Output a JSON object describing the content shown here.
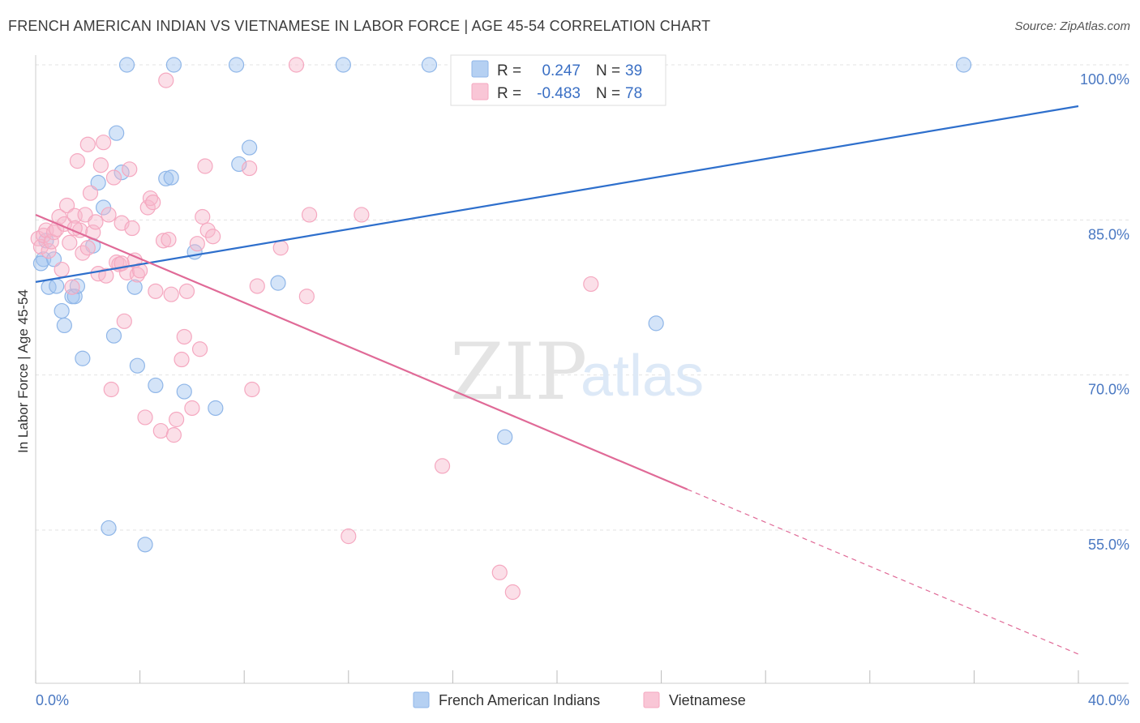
{
  "title": "FRENCH AMERICAN INDIAN VS VIETNAMESE IN LABOR FORCE | AGE 45-54 CORRELATION CHART",
  "source": "Source: ZipAtlas.com",
  "watermark": {
    "zip": "ZIP",
    "atlas": "atlas"
  },
  "chart_data": {
    "type": "scatter",
    "xlabel": "",
    "ylabel": "In Labor Force | Age 45-54",
    "xlim": [
      0,
      40
    ],
    "ylim": [
      40,
      102
    ],
    "x_tick_labels": [
      {
        "value": 0,
        "label": "0.0%"
      },
      {
        "value": 40,
        "label": "40.0%"
      }
    ],
    "y_tick_labels": [
      {
        "value": 100,
        "label": "100.0%"
      },
      {
        "value": 85,
        "label": "85.0%"
      },
      {
        "value": 70,
        "label": "70.0%"
      },
      {
        "value": 55,
        "label": "55.0%"
      }
    ],
    "x_minor_ticks": [
      4,
      8,
      12,
      16,
      20,
      24,
      28,
      32,
      36
    ],
    "grid": true,
    "legend": {
      "position": "top-center",
      "entries": [
        {
          "r_label": "R =",
          "r_value": "0.247",
          "n_label": "N =",
          "n_value": "39"
        },
        {
          "r_label": "R =",
          "r_value": "-0.483",
          "n_label": "N =",
          "n_value": "78"
        }
      ]
    },
    "series": [
      {
        "name": "French American Indians",
        "color": "#8fb6e8",
        "line_color": "#2e6fcc",
        "trend": {
          "x0": 0,
          "y0": 79.0,
          "x1": 40,
          "y1": 96.0,
          "dashed_from_x": null
        },
        "points": [
          [
            0.3,
            81.2
          ],
          [
            0.4,
            83.0
          ],
          [
            0.5,
            78.5
          ],
          [
            0.7,
            81.2
          ],
          [
            0.8,
            78.6
          ],
          [
            1.0,
            76.2
          ],
          [
            1.1,
            74.8
          ],
          [
            1.4,
            77.6
          ],
          [
            1.5,
            77.6
          ],
          [
            1.6,
            78.6
          ],
          [
            1.8,
            71.6
          ],
          [
            2.2,
            82.5
          ],
          [
            2.4,
            88.6
          ],
          [
            2.6,
            86.2
          ],
          [
            2.8,
            55.2
          ],
          [
            3.0,
            73.8
          ],
          [
            3.1,
            93.4
          ],
          [
            3.3,
            89.6
          ],
          [
            3.5,
            100.0
          ],
          [
            3.8,
            78.5
          ],
          [
            3.9,
            70.9
          ],
          [
            4.2,
            53.6
          ],
          [
            4.6,
            69.0
          ],
          [
            5.0,
            89.0
          ],
          [
            5.2,
            89.1
          ],
          [
            5.3,
            100.0
          ],
          [
            5.7,
            68.4
          ],
          [
            6.1,
            81.9
          ],
          [
            6.9,
            66.8
          ],
          [
            7.7,
            100.0
          ],
          [
            7.8,
            90.4
          ],
          [
            8.2,
            92.0
          ],
          [
            9.3,
            78.9
          ],
          [
            11.8,
            100.0
          ],
          [
            15.1,
            100.0
          ],
          [
            18.0,
            64.0
          ],
          [
            23.8,
            75.0
          ],
          [
            35.6,
            100.0
          ],
          [
            0.2,
            80.8
          ]
        ]
      },
      {
        "name": "Vietnamese",
        "color": "#f5a8c0",
        "line_color": "#e06a97",
        "trend": {
          "x0": 0,
          "y0": 85.5,
          "x1": 40,
          "y1": 43.0,
          "dashed_from_x": 25.0
        },
        "points": [
          [
            0.1,
            83.2
          ],
          [
            0.2,
            82.4
          ],
          [
            0.3,
            83.5
          ],
          [
            0.4,
            84.0
          ],
          [
            0.5,
            82.0
          ],
          [
            0.6,
            82.9
          ],
          [
            0.7,
            83.8
          ],
          [
            0.8,
            84.1
          ],
          [
            0.9,
            85.3
          ],
          [
            1.0,
            80.2
          ],
          [
            1.1,
            84.6
          ],
          [
            1.2,
            86.4
          ],
          [
            1.3,
            82.8
          ],
          [
            1.4,
            78.5
          ],
          [
            1.5,
            85.4
          ],
          [
            1.6,
            90.7
          ],
          [
            1.7,
            84.0
          ],
          [
            1.8,
            81.8
          ],
          [
            1.9,
            85.5
          ],
          [
            2.0,
            82.3
          ],
          [
            2.1,
            87.6
          ],
          [
            2.2,
            83.8
          ],
          [
            2.3,
            84.8
          ],
          [
            2.4,
            79.8
          ],
          [
            2.5,
            90.3
          ],
          [
            2.6,
            92.5
          ],
          [
            2.7,
            79.6
          ],
          [
            2.8,
            85.5
          ],
          [
            2.9,
            68.6
          ],
          [
            3.0,
            89.1
          ],
          [
            3.1,
            80.9
          ],
          [
            3.2,
            80.7
          ],
          [
            3.3,
            84.7
          ],
          [
            3.4,
            75.2
          ],
          [
            3.5,
            79.9
          ],
          [
            3.6,
            89.9
          ],
          [
            3.7,
            84.2
          ],
          [
            3.8,
            81.1
          ],
          [
            3.9,
            79.7
          ],
          [
            4.0,
            80.1
          ],
          [
            4.2,
            65.9
          ],
          [
            4.3,
            86.2
          ],
          [
            4.4,
            87.1
          ],
          [
            4.5,
            86.7
          ],
          [
            4.6,
            78.1
          ],
          [
            4.8,
            64.6
          ],
          [
            4.9,
            83.0
          ],
          [
            5.0,
            98.5
          ],
          [
            5.2,
            77.8
          ],
          [
            5.3,
            64.2
          ],
          [
            5.4,
            65.7
          ],
          [
            5.6,
            71.5
          ],
          [
            5.7,
            73.7
          ],
          [
            5.8,
            78.1
          ],
          [
            6.0,
            66.8
          ],
          [
            6.2,
            82.7
          ],
          [
            6.3,
            72.5
          ],
          [
            6.4,
            85.3
          ],
          [
            6.5,
            90.2
          ],
          [
            6.6,
            84.0
          ],
          [
            6.8,
            83.4
          ],
          [
            2.0,
            92.3
          ],
          [
            8.2,
            90.0
          ],
          [
            8.3,
            68.6
          ],
          [
            8.5,
            78.6
          ],
          [
            9.4,
            82.3
          ],
          [
            10.0,
            100.0
          ],
          [
            10.4,
            77.6
          ],
          [
            10.5,
            85.5
          ],
          [
            12.5,
            85.5
          ],
          [
            12.0,
            54.4
          ],
          [
            15.6,
            61.2
          ],
          [
            17.8,
            50.9
          ],
          [
            18.3,
            49.0
          ],
          [
            21.3,
            78.8
          ],
          [
            3.3,
            80.8
          ],
          [
            1.5,
            84.2
          ],
          [
            5.1,
            83.1
          ]
        ]
      }
    ]
  }
}
